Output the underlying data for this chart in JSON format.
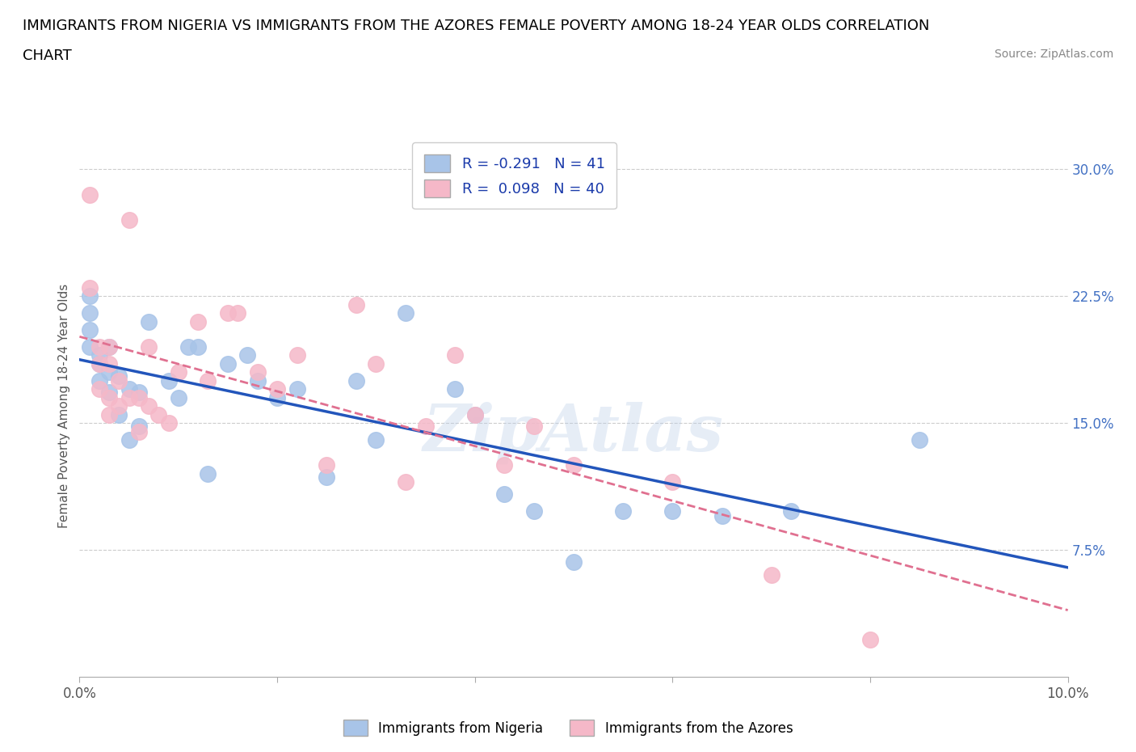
{
  "title_line1": "IMMIGRANTS FROM NIGERIA VS IMMIGRANTS FROM THE AZORES FEMALE POVERTY AMONG 18-24 YEAR OLDS CORRELATION",
  "title_line2": "CHART",
  "source_text": "Source: ZipAtlas.com",
  "ylabel": "Female Poverty Among 18-24 Year Olds",
  "xlim": [
    0.0,
    0.1
  ],
  "ylim": [
    0.0,
    0.32
  ],
  "xtick_positions": [
    0.0,
    0.02,
    0.04,
    0.06,
    0.08,
    0.1
  ],
  "xtick_labels": [
    "0.0%",
    "",
    "",
    "",
    "",
    "10.0%"
  ],
  "ytick_vals_right": [
    0.075,
    0.15,
    0.225,
    0.3
  ],
  "ytick_labels_right": [
    "7.5%",
    "15.0%",
    "22.5%",
    "30.0%"
  ],
  "nigeria_R": -0.291,
  "nigeria_N": 41,
  "azores_R": 0.098,
  "azores_N": 40,
  "nigeria_color": "#a8c4e8",
  "azores_color": "#f5b8c8",
  "nigeria_line_color": "#2255bb",
  "azores_line_color": "#e07090",
  "background_color": "#ffffff",
  "nigeria_x": [
    0.001,
    0.001,
    0.001,
    0.001,
    0.002,
    0.002,
    0.002,
    0.003,
    0.003,
    0.003,
    0.004,
    0.004,
    0.005,
    0.005,
    0.006,
    0.006,
    0.007,
    0.009,
    0.01,
    0.011,
    0.012,
    0.013,
    0.015,
    0.017,
    0.018,
    0.02,
    0.022,
    0.025,
    0.028,
    0.03,
    0.033,
    0.038,
    0.04,
    0.043,
    0.046,
    0.05,
    0.055,
    0.06,
    0.065,
    0.072,
    0.085
  ],
  "nigeria_y": [
    0.225,
    0.215,
    0.205,
    0.195,
    0.19,
    0.185,
    0.175,
    0.195,
    0.18,
    0.168,
    0.178,
    0.155,
    0.17,
    0.14,
    0.168,
    0.148,
    0.21,
    0.175,
    0.165,
    0.195,
    0.195,
    0.12,
    0.185,
    0.19,
    0.175,
    0.165,
    0.17,
    0.118,
    0.175,
    0.14,
    0.215,
    0.17,
    0.155,
    0.108,
    0.098,
    0.068,
    0.098,
    0.098,
    0.095,
    0.098,
    0.14
  ],
  "azores_x": [
    0.001,
    0.001,
    0.002,
    0.002,
    0.002,
    0.003,
    0.003,
    0.003,
    0.003,
    0.004,
    0.004,
    0.005,
    0.005,
    0.006,
    0.006,
    0.007,
    0.007,
    0.008,
    0.009,
    0.01,
    0.012,
    0.013,
    0.015,
    0.016,
    0.018,
    0.02,
    0.022,
    0.025,
    0.028,
    0.03,
    0.033,
    0.035,
    0.038,
    0.04,
    0.043,
    0.046,
    0.05,
    0.06,
    0.07,
    0.08
  ],
  "azores_y": [
    0.285,
    0.23,
    0.195,
    0.185,
    0.17,
    0.195,
    0.185,
    0.165,
    0.155,
    0.175,
    0.16,
    0.27,
    0.165,
    0.165,
    0.145,
    0.195,
    0.16,
    0.155,
    0.15,
    0.18,
    0.21,
    0.175,
    0.215,
    0.215,
    0.18,
    0.17,
    0.19,
    0.125,
    0.22,
    0.185,
    0.115,
    0.148,
    0.19,
    0.155,
    0.125,
    0.148,
    0.125,
    0.115,
    0.06,
    0.022
  ],
  "watermark": "ZipAtlas",
  "legend_fontsize": 13,
  "title_fontsize": 13
}
